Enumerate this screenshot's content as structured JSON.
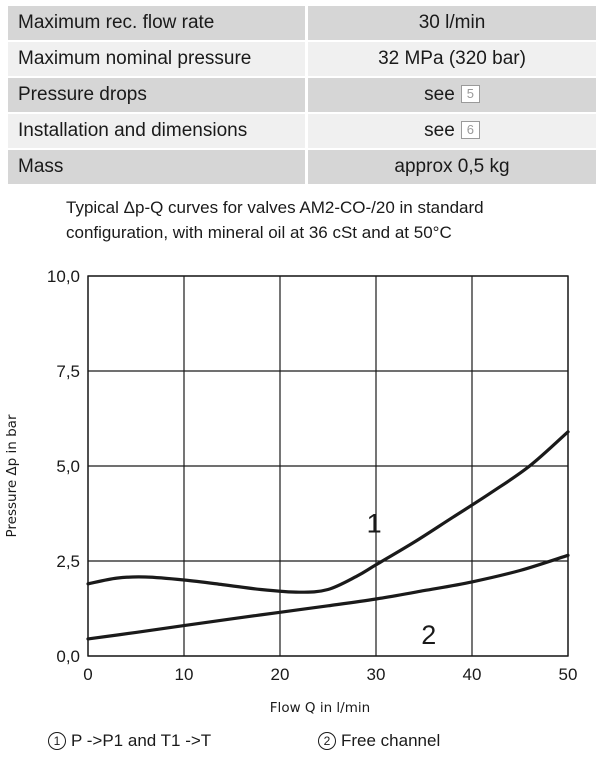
{
  "spec_table": [
    {
      "label": "Maximum rec. flow rate",
      "value": "30 l/min",
      "ref": ""
    },
    {
      "label": "Maximum nominal pressure",
      "value": "32 MPa (320 bar)",
      "ref": ""
    },
    {
      "label": "Pressure drops",
      "value": "see",
      "ref": "5"
    },
    {
      "label": "Installation and dimensions",
      "value": "see",
      "ref": "6"
    },
    {
      "label": "Mass",
      "value": "approx 0,5 kg",
      "ref": ""
    }
  ],
  "caption": {
    "line1": "Typical Δp-Q curves for valves AM2-CO-/20 in standard",
    "line2": "configuration, with mineral oil at 36 cSt and at 50°C"
  },
  "legend": {
    "item1_num": "1",
    "item1_text": "P ->P1  and  T1 ->T",
    "item2_num": "2",
    "item2_text": "Free channel"
  },
  "chart_data": {
    "type": "line",
    "title": "",
    "xlabel": "Flow Q in l/min",
    "ylabel": "Pressure Δp in bar",
    "xlim": [
      0,
      50
    ],
    "ylim": [
      0,
      10
    ],
    "x_ticks": [
      0,
      10,
      20,
      30,
      40,
      50
    ],
    "x_tick_labels": [
      "0",
      "10",
      "20",
      "30",
      "40",
      "50"
    ],
    "y_ticks": [
      0,
      2.5,
      5,
      7.5,
      10
    ],
    "y_tick_labels": [
      "0,0",
      "2,5",
      "5,0",
      "7,5",
      "10,0"
    ],
    "grid": true,
    "series": [
      {
        "name": "1",
        "x": [
          0,
          3,
          6,
          10,
          14,
          18,
          22,
          25,
          28,
          30,
          34,
          38,
          42,
          46,
          50
        ],
        "y": [
          1.9,
          2.05,
          2.08,
          2.0,
          1.88,
          1.75,
          1.68,
          1.75,
          2.1,
          2.4,
          3.0,
          3.65,
          4.3,
          5.0,
          5.9
        ]
      },
      {
        "name": "2",
        "x": [
          0,
          5,
          10,
          15,
          20,
          25,
          30,
          35,
          40,
          45,
          50
        ],
        "y": [
          0.45,
          0.62,
          0.8,
          0.98,
          1.15,
          1.32,
          1.5,
          1.72,
          1.95,
          2.25,
          2.65
        ]
      }
    ],
    "colors": {
      "line": "#1a1a1a",
      "grid": "#1a1a1a",
      "text": "#1a1a1a"
    }
  }
}
